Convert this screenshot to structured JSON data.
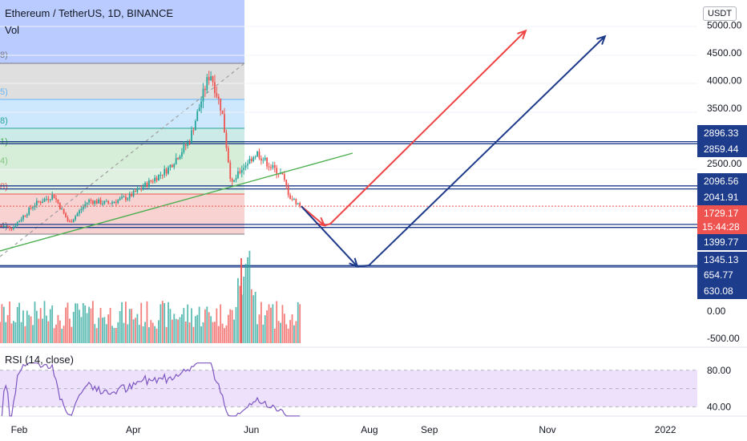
{
  "header": {
    "title": "Ethereum / TetherUS, 1D, BINANCE",
    "volume_label": "Vol",
    "currency_badge": "USDT"
  },
  "rsi": {
    "label": "RSI (14, close)",
    "ticks": [
      "80.00",
      "40.00"
    ]
  },
  "colors": {
    "up": "#26a69a",
    "down": "#ef5350",
    "level_line": "#1e3c8c",
    "red_arrow": "#ef4444",
    "blue_arrow": "#1e3a8a",
    "trend": "#4caf50",
    "rsi_line": "#7e57c2",
    "rsi_band": "#ede1fb"
  },
  "chart_data": {
    "type": "candlestick",
    "symbol": "ETHUSDT",
    "interval": "1D",
    "exchange": "BINANCE",
    "x_ticks": [
      "Feb",
      "Apr",
      "Jun",
      "Aug",
      "Sep",
      "Nov",
      "2022"
    ],
    "y_ticks": [
      "5000.00",
      "4500.00",
      "4000.00",
      "3500.00",
      "2500.00"
    ],
    "volume_ticks": [
      "0.00",
      "-500.00"
    ],
    "price_levels": [
      {
        "value": 2896.33,
        "label": "2896.33"
      },
      {
        "value": 2859.44,
        "label": "2859.44"
      },
      {
        "value": 2096.56,
        "label": "2096.56"
      },
      {
        "value": 2041.91,
        "label": "2041.91"
      },
      {
        "value": 1399.77,
        "label": "1399.77"
      },
      {
        "value": 1345.13,
        "label": "1345.13"
      },
      {
        "value": 654.77,
        "label": "654.77"
      },
      {
        "value": 630.08,
        "label": "630.08"
      }
    ],
    "current_price": {
      "value": 1729.17,
      "label": "1729.17",
      "countdown": "15:44:28"
    },
    "fib_labels": [
      "8)",
      "5)",
      "8)",
      "1)",
      "4)",
      "8)",
      "4)"
    ],
    "price_path_approx": [
      [
        "2021-01-20",
        1380
      ],
      [
        "2021-01-30",
        1350
      ],
      [
        "2021-02-10",
        1760
      ],
      [
        "2021-02-20",
        1930
      ],
      [
        "2021-02-28",
        1420
      ],
      [
        "2021-03-10",
        1830
      ],
      [
        "2021-03-20",
        1780
      ],
      [
        "2021-03-31",
        1900
      ],
      [
        "2021-04-10",
        2150
      ],
      [
        "2021-04-20",
        2400
      ],
      [
        "2021-05-01",
        2900
      ],
      [
        "2021-05-10",
        3950
      ],
      [
        "2021-05-12",
        4150
      ],
      [
        "2021-05-18",
        3450
      ],
      [
        "2021-05-23",
        2100
      ],
      [
        "2021-05-28",
        2400
      ],
      [
        "2021-06-05",
        2700
      ],
      [
        "2021-06-12",
        2450
      ],
      [
        "2021-06-18",
        2300
      ],
      [
        "2021-06-22",
        1900
      ],
      [
        "2021-06-28",
        1729
      ]
    ],
    "projections": [
      {
        "color": "red",
        "points": [
          [
            "2021-06-28",
            1729
          ],
          [
            "2021-07-10",
            1380
          ],
          [
            "2021-07-13",
            1410
          ],
          [
            "2021-10-22",
            4900
          ]
        ]
      },
      {
        "color": "blue",
        "points": [
          [
            "2021-06-28",
            1729
          ],
          [
            "2021-07-27",
            640
          ],
          [
            "2021-08-02",
            660
          ],
          [
            "2021-12-02",
            4800
          ]
        ]
      }
    ],
    "rsi": {
      "range": [
        0,
        100
      ],
      "overbought": 80,
      "oversold": 40
    }
  }
}
